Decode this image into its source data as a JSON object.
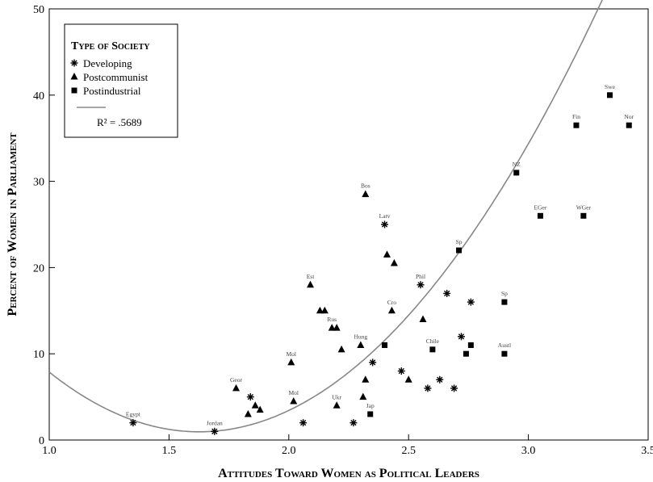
{
  "chart_data": {
    "type": "scatter",
    "xlabel": "Attitudes Toward Women as Political Leaders",
    "ylabel": "Percent of Women in Parliament",
    "xlim": [
      1.0,
      3.5
    ],
    "ylim": [
      0,
      50
    ],
    "x_ticks": [
      "1.0",
      "1.5",
      "2.0",
      "2.5",
      "3.0",
      "3.5"
    ],
    "y_ticks": [
      "0",
      "10",
      "20",
      "30",
      "40",
      "50"
    ],
    "grid": false,
    "legend": {
      "placement": "top-left",
      "title": "Type of Society",
      "entries": [
        {
          "name": "Developing",
          "marker": "asterisk"
        },
        {
          "name": "Postcommunist",
          "marker": "triangle"
        },
        {
          "name": "Postindustrial",
          "marker": "square"
        }
      ],
      "fit_label": "R² = .5689"
    },
    "series": [
      {
        "name": "Developing",
        "marker": "asterisk",
        "points": [
          {
            "x": 1.35,
            "y": 2.0,
            "label": "Egypt"
          },
          {
            "x": 1.69,
            "y": 1.0,
            "label": "Jordan"
          },
          {
            "x": 1.84,
            "y": 5.0,
            "label": ""
          },
          {
            "x": 2.06,
            "y": 2.0,
            "label": ""
          },
          {
            "x": 2.27,
            "y": 2.0,
            "label": ""
          },
          {
            "x": 2.35,
            "y": 9.0,
            "label": ""
          },
          {
            "x": 2.47,
            "y": 8.0,
            "label": ""
          },
          {
            "x": 2.58,
            "y": 6.0,
            "label": ""
          },
          {
            "x": 2.63,
            "y": 7.0,
            "label": ""
          },
          {
            "x": 2.69,
            "y": 6.0,
            "label": ""
          },
          {
            "x": 2.4,
            "y": 25.0,
            "label": "Latv"
          },
          {
            "x": 2.55,
            "y": 18.0,
            "label": "Phil"
          },
          {
            "x": 2.66,
            "y": 17.0,
            "label": ""
          },
          {
            "x": 2.72,
            "y": 12.0,
            "label": ""
          },
          {
            "x": 2.76,
            "y": 16.0,
            "label": ""
          }
        ]
      },
      {
        "name": "Postcommunist",
        "marker": "triangle",
        "points": [
          {
            "x": 1.78,
            "y": 6.0,
            "label": "Geor"
          },
          {
            "x": 1.83,
            "y": 3.0,
            "label": ""
          },
          {
            "x": 1.86,
            "y": 4.0,
            "label": ""
          },
          {
            "x": 1.88,
            "y": 3.5,
            "label": ""
          },
          {
            "x": 2.02,
            "y": 4.5,
            "label": "Mol"
          },
          {
            "x": 2.01,
            "y": 9.0,
            "label": "Mol"
          },
          {
            "x": 2.09,
            "y": 18.0,
            "label": "Est"
          },
          {
            "x": 2.13,
            "y": 15.0,
            "label": ""
          },
          {
            "x": 2.15,
            "y": 15.0,
            "label": ""
          },
          {
            "x": 2.18,
            "y": 13.0,
            "label": "Rus"
          },
          {
            "x": 2.2,
            "y": 13.0,
            "label": ""
          },
          {
            "x": 2.22,
            "y": 10.5,
            "label": ""
          },
          {
            "x": 2.2,
            "y": 4.0,
            "label": "Ukr"
          },
          {
            "x": 2.31,
            "y": 5.0,
            "label": ""
          },
          {
            "x": 2.32,
            "y": 7.0,
            "label": ""
          },
          {
            "x": 2.32,
            "y": 28.5,
            "label": "Bos"
          },
          {
            "x": 2.41,
            "y": 21.5,
            "label": ""
          },
          {
            "x": 2.44,
            "y": 20.5,
            "label": ""
          },
          {
            "x": 2.43,
            "y": 15.0,
            "label": "Cro"
          },
          {
            "x": 2.5,
            "y": 7.0,
            "label": ""
          },
          {
            "x": 2.56,
            "y": 14.0,
            "label": ""
          },
          {
            "x": 2.3,
            "y": 11.0,
            "label": "Hung"
          }
        ]
      },
      {
        "name": "Postindustrial",
        "marker": "square",
        "points": [
          {
            "x": 2.34,
            "y": 3.0,
            "label": "Jap"
          },
          {
            "x": 2.6,
            "y": 10.5,
            "label": "Chile"
          },
          {
            "x": 2.4,
            "y": 11.0,
            "label": ""
          },
          {
            "x": 2.74,
            "y": 10.0,
            "label": ""
          },
          {
            "x": 2.76,
            "y": 11.0,
            "label": ""
          },
          {
            "x": 2.71,
            "y": 22.0,
            "label": "Sp"
          },
          {
            "x": 2.9,
            "y": 16.0,
            "label": "Sp"
          },
          {
            "x": 2.9,
            "y": 10.0,
            "label": "Austl"
          },
          {
            "x": 2.95,
            "y": 31.0,
            "label": "NZ"
          },
          {
            "x": 3.05,
            "y": 26.0,
            "label": "EGer"
          },
          {
            "x": 3.23,
            "y": 26.0,
            "label": "WGer"
          },
          {
            "x": 3.2,
            "y": 36.5,
            "label": "Fin"
          },
          {
            "x": 3.34,
            "y": 40.0,
            "label": "Swe"
          },
          {
            "x": 3.42,
            "y": 36.5,
            "label": "Nor"
          }
        ]
      }
    ],
    "fit_line": {
      "type": "quadratic",
      "r_squared": 0.5689,
      "coefficients": [
        47.71,
        -57.52,
        17.69
      ]
    }
  }
}
